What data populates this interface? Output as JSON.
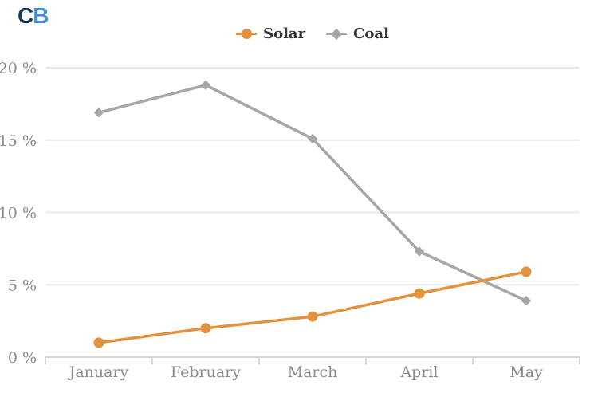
{
  "logo": {
    "part1": "C",
    "part2": "B"
  },
  "chart_data": {
    "type": "line",
    "categories": [
      "January",
      "February",
      "March",
      "April",
      "May"
    ],
    "series": [
      {
        "name": "Solar",
        "marker": "circle",
        "color": "#e2913c",
        "values": [
          1.0,
          2.0,
          2.8,
          4.4,
          5.9
        ]
      },
      {
        "name": "Coal",
        "marker": "diamond",
        "color": "#a6a6a6",
        "values": [
          16.9,
          18.8,
          15.1,
          7.3,
          3.9
        ]
      }
    ],
    "title": "",
    "xlabel": "",
    "ylabel": "",
    "ylim": [
      0,
      20
    ],
    "yticks": [
      0,
      5,
      10,
      15,
      20
    ],
    "ytick_format": "{v} %",
    "grid": true,
    "legend_position": "top",
    "colors": {
      "grid": "#e8e8e8",
      "axis": "#d6d6d6",
      "tick_label": "#8b8b8b",
      "legend_text": "#333333",
      "logo_c": "#1b3a60",
      "logo_b": "#3e8fd0"
    }
  }
}
